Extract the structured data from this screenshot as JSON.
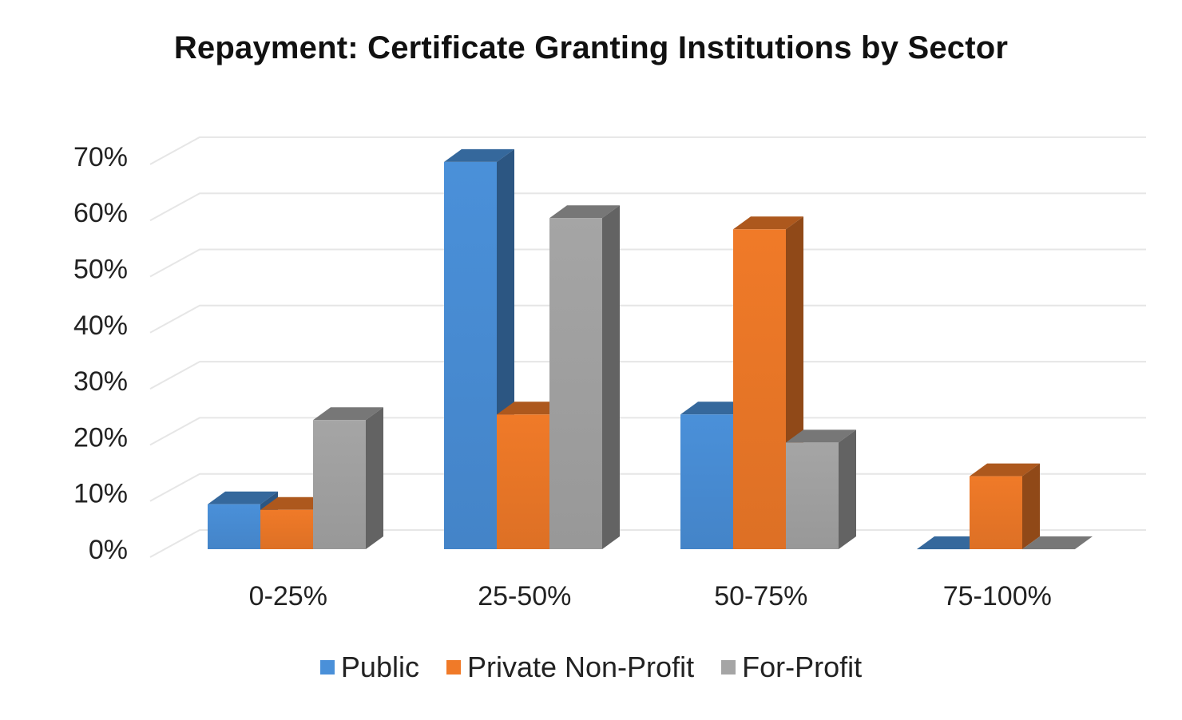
{
  "chart_data": {
    "type": "bar",
    "style": "3d-clustered-column",
    "title": "Repayment: Certificate Granting Institutions by Sector",
    "xlabel": "",
    "ylabel": "",
    "categories": [
      "0-25%",
      "25-50%",
      "50-75%",
      "75-100%"
    ],
    "series": [
      {
        "name": "Public",
        "color": "#4A90D9",
        "values": [
          8,
          69,
          24,
          0
        ]
      },
      {
        "name": "Private Non-Profit",
        "color": "#F07A28",
        "values": [
          7,
          24,
          57,
          13
        ]
      },
      {
        "name": "For-Profit",
        "color": "#A5A5A5",
        "values": [
          23,
          59,
          19,
          0
        ]
      }
    ],
    "y_ticks": [
      "0%",
      "10%",
      "20%",
      "30%",
      "40%",
      "50%",
      "60%",
      "70%"
    ],
    "ylim": [
      0,
      75
    ],
    "grid": true,
    "legend_position": "bottom"
  }
}
